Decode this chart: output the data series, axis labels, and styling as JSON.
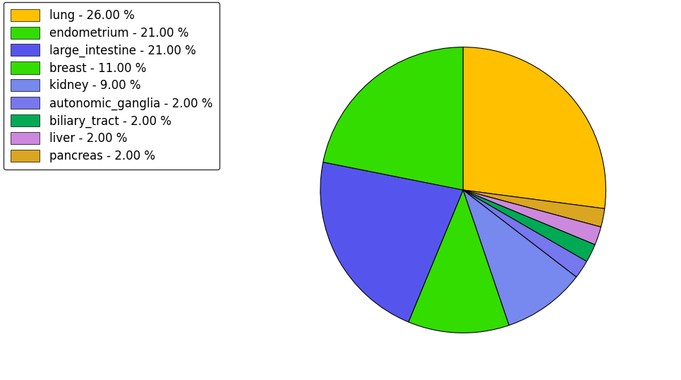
{
  "pie_order": [
    "lung",
    "pancreas",
    "liver",
    "biliary_tract",
    "autonomic_ganglia",
    "kidney",
    "breast",
    "large_intestine",
    "endometrium"
  ],
  "values": [
    26.0,
    2.0,
    2.0,
    2.0,
    2.0,
    9.0,
    11.0,
    21.0,
    21.0
  ],
  "pie_colors": [
    "#FFC000",
    "#DAA520",
    "#CC88DD",
    "#00AA55",
    "#7777EE",
    "#7788EE",
    "#33DD00",
    "#5555EE",
    "#33DD00"
  ],
  "legend_labels": [
    "lung - 26.00 %",
    "endometrium - 21.00 %",
    "large_intestine - 21.00 %",
    "breast - 11.00 %",
    "kidney - 9.00 %",
    "autonomic_ganglia - 2.00 %",
    "biliary_tract - 2.00 %",
    "liver - 2.00 %",
    "pancreas - 2.00 %"
  ],
  "legend_colors": [
    "#FFC000",
    "#33DD00",
    "#5555EE",
    "#33DD00",
    "#7788EE",
    "#7777EE",
    "#00AA55",
    "#CC88DD",
    "#DAA520"
  ],
  "start_angle": 90,
  "counterclock": false,
  "figsize": [
    9.65,
    5.38
  ],
  "dpi": 100,
  "background_color": "#ffffff"
}
